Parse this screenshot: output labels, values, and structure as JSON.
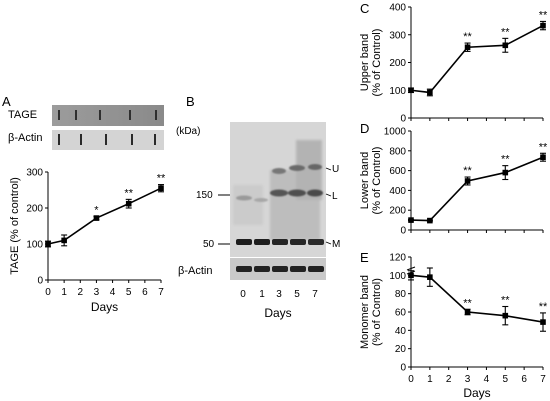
{
  "panels": {
    "A": {
      "letter": "A",
      "blot_labels": [
        "TAGE",
        "β-Actin"
      ]
    },
    "B": {
      "letter": "B",
      "kda_label": "(kDa)",
      "mw_markers": [
        "150",
        "50"
      ],
      "band_labels": [
        "U",
        "L",
        "M"
      ],
      "actin_label": "β-Actin",
      "lane_labels": [
        "0",
        "1",
        "3",
        "5",
        "7"
      ],
      "xlabel": "Days"
    },
    "C": {
      "letter": "C"
    },
    "D": {
      "letter": "D"
    },
    "E": {
      "letter": "E"
    }
  },
  "chart_data": [
    {
      "id": "A",
      "type": "line",
      "x": [
        0,
        1,
        3,
        5,
        7
      ],
      "values": [
        100,
        110,
        172,
        212,
        255
      ],
      "errors": [
        8,
        15,
        5,
        12,
        10
      ],
      "significance": [
        "",
        "",
        "*",
        "**",
        "**"
      ],
      "xlabel": "Days",
      "ylabel": "TAGE (% of control)",
      "xticks": [
        "0",
        "1",
        "2",
        "3",
        "4",
        "5",
        "6",
        "7"
      ],
      "yticks": [
        "0",
        "100",
        "200",
        "300"
      ],
      "xlim": [
        0,
        7
      ],
      "ylim": [
        0,
        300
      ]
    },
    {
      "id": "C",
      "type": "line",
      "x": [
        0,
        1,
        3,
        5,
        7
      ],
      "values": [
        100,
        92,
        255,
        262,
        333
      ],
      "errors": [
        8,
        12,
        15,
        25,
        15
      ],
      "significance": [
        "",
        "",
        "**",
        "**",
        "**"
      ],
      "xlabel": "",
      "ylabel": "Upper band\n(% of Control)",
      "xticks": [],
      "yticks": [
        "0",
        "100",
        "200",
        "300",
        "400"
      ],
      "xlim": [
        0,
        7
      ],
      "ylim": [
        0,
        400
      ]
    },
    {
      "id": "D",
      "type": "line",
      "x": [
        0,
        1,
        3,
        5,
        7
      ],
      "values": [
        100,
        95,
        495,
        580,
        735
      ],
      "errors": [
        5,
        5,
        40,
        70,
        40
      ],
      "significance": [
        "",
        "",
        "**",
        "**",
        "**"
      ],
      "xlabel": "",
      "ylabel": "Lower band\n(% of Control)",
      "xticks": [],
      "yticks": [
        "0",
        "200",
        "400",
        "600",
        "800",
        "1000"
      ],
      "xlim": [
        0,
        7
      ],
      "ylim": [
        0,
        1000
      ]
    },
    {
      "id": "E",
      "type": "line",
      "x": [
        0,
        1,
        3,
        5,
        7
      ],
      "values": [
        100,
        98,
        60,
        56,
        49
      ],
      "errors": [
        5,
        10,
        3,
        10,
        10
      ],
      "significance": [
        "",
        "",
        "**",
        "**",
        "**"
      ],
      "xlabel": "Days",
      "ylabel": "Monomer band\n(% of Control)",
      "xticks": [
        "0",
        "1",
        "2",
        "3",
        "4",
        "5",
        "6",
        "7"
      ],
      "yticks": [
        "0",
        "20",
        "40",
        "60",
        "80",
        "100",
        "120"
      ],
      "xlim": [
        0,
        7
      ],
      "ylim": [
        0,
        120
      ],
      "axis_break": true
    }
  ]
}
